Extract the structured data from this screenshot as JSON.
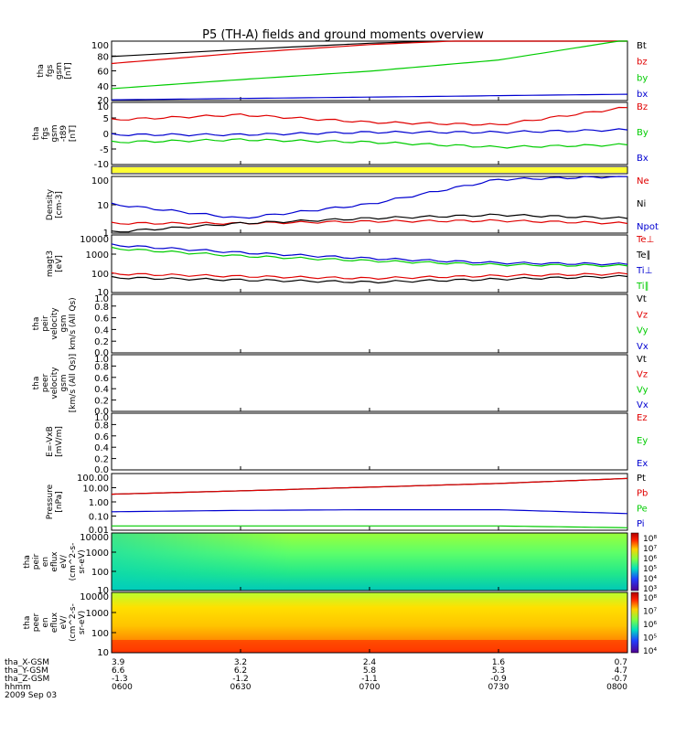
{
  "title": "P5 (TH-A) fields and ground moments overview",
  "colors": {
    "black": "#000000",
    "red": "#e00000",
    "green": "#00cc00",
    "blue": "#0000d0",
    "yellow": "#ffff33",
    "frame": "#000000"
  },
  "panels": [
    {
      "id": "fgs-gsm",
      "ylabel": [
        "tha",
        "fgs",
        "gsm",
        "[nT]"
      ],
      "yticks": [
        "100",
        "80",
        "60",
        "40",
        "20"
      ],
      "ylim": [
        20,
        105
      ],
      "legend": [
        {
          "label": "Bt",
          "color": "black"
        },
        {
          "label": "bz",
          "color": "red"
        },
        {
          "label": "by",
          "color": "green"
        },
        {
          "label": "bx",
          "color": "blue"
        }
      ]
    },
    {
      "id": "fgs-gsm-dt89",
      "ylabel": [
        "tha",
        "fgs",
        "gsm",
        "-t89",
        "[nT]"
      ],
      "yticks": [
        "10",
        "5",
        "0",
        "-5",
        "-10"
      ],
      "ylim": [
        -13,
        12
      ],
      "legend": [
        {
          "label": "Bz",
          "color": "red"
        },
        {
          "label": "By",
          "color": "green"
        },
        {
          "label": "Bx",
          "color": "blue"
        }
      ]
    },
    {
      "id": "flag-bar",
      "ylabel": [],
      "yticks": [],
      "legend": []
    },
    {
      "id": "density",
      "ylabel": [
        "Density",
        "[cm-3]"
      ],
      "yticks": [
        "100",
        "10",
        "1"
      ],
      "ylim": [
        1,
        200
      ],
      "legend": [
        {
          "label": "Ne",
          "color": "red"
        },
        {
          "label": "Ni",
          "color": "black"
        },
        {
          "label": "Npot",
          "color": "blue"
        }
      ]
    },
    {
      "id": "temperature",
      "ylabel": [
        "magt3",
        "[eV]"
      ],
      "yticks": [
        "10000",
        "1000",
        "100",
        "10"
      ],
      "ylim": [
        10,
        10000
      ],
      "legend": [
        {
          "label": "Te⊥",
          "color": "red"
        },
        {
          "label": "Te∥",
          "color": "black"
        },
        {
          "label": "Ti⊥",
          "color": "blue"
        },
        {
          "label": "Ti∥",
          "color": "green"
        }
      ]
    },
    {
      "id": "peir-velocity",
      "ylabel": [
        "tha",
        "peir",
        "velocity",
        "gsm",
        "km/s (All Qs)"
      ],
      "yticks": [
        "1.0",
        "0.8",
        "0.6",
        "0.4",
        "0.2",
        "0.0"
      ],
      "ylim": [
        0,
        1
      ],
      "legend": [
        {
          "label": "Vt",
          "color": "black"
        },
        {
          "label": "Vz",
          "color": "red"
        },
        {
          "label": "Vy",
          "color": "green"
        },
        {
          "label": "Vx",
          "color": "blue"
        }
      ]
    },
    {
      "id": "peer-velocity",
      "ylabel": [
        "tha",
        "peer",
        "velocity",
        "gsm",
        "[km/s (All Qs)]"
      ],
      "yticks": [
        "1.0",
        "0.8",
        "0.6",
        "0.4",
        "0.2",
        "0.0"
      ],
      "ylim": [
        0,
        1
      ],
      "legend": [
        {
          "label": "Vt",
          "color": "black"
        },
        {
          "label": "Vz",
          "color": "red"
        },
        {
          "label": "Vy",
          "color": "green"
        },
        {
          "label": "Vx",
          "color": "blue"
        }
      ]
    },
    {
      "id": "e-field",
      "ylabel": [
        "E=-VxB",
        "[mV/m]"
      ],
      "yticks": [
        "1.0",
        "0.8",
        "0.6",
        "0.4",
        "0.2",
        "0.0"
      ],
      "ylim": [
        0,
        1
      ],
      "legend": [
        {
          "label": "Ez",
          "color": "red"
        },
        {
          "label": "Ey",
          "color": "green"
        },
        {
          "label": "Ex",
          "color": "blue"
        }
      ]
    },
    {
      "id": "pressure",
      "ylabel": [
        "Pressure",
        "[nPa]"
      ],
      "yticks": [
        "100.00",
        "10.00",
        "1.00",
        "0.10",
        "0.01"
      ],
      "ylim": [
        0.01,
        100
      ],
      "legend": [
        {
          "label": "Pt",
          "color": "black"
        },
        {
          "label": "Pb",
          "color": "red"
        },
        {
          "label": "Pe",
          "color": "green"
        },
        {
          "label": "Pi",
          "color": "blue"
        }
      ]
    },
    {
      "id": "peir-en-eflux",
      "ylabel": [
        "tha",
        "peir",
        "en",
        "eflux",
        "eV/",
        "(cm^2-s-",
        "sr-eV)"
      ],
      "yticks": [
        "10000",
        "1000",
        "100",
        "10"
      ],
      "colorbar_ticks": [
        "10⁸",
        "10⁷",
        "10⁶",
        "10⁵",
        "10⁴",
        "10³"
      ],
      "legend": []
    },
    {
      "id": "peer-en-eflux",
      "ylabel": [
        "tha",
        "peer",
        "en",
        "eflux",
        "eV/",
        "(cm^2-s-",
        "sr-eV)"
      ],
      "yticks": [
        "10000",
        "1000",
        "100",
        "10"
      ],
      "colorbar_ticks": [
        "10⁸",
        "10⁷",
        "10⁶",
        "10⁵",
        "10⁴"
      ],
      "legend": []
    }
  ],
  "chart_data": {
    "type": "line",
    "title": "P5 (TH-A) fields and ground moments overview",
    "x": [
      "0600",
      "0630",
      "0700",
      "0730",
      "0800"
    ],
    "xlabel": "hhmm",
    "date": "2009 Sep 03",
    "series": [
      {
        "name": "Bt",
        "panel": "fgs-gsm",
        "values": [
          83,
          93,
          102,
          108,
          115
        ]
      },
      {
        "name": "bz",
        "panel": "fgs-gsm",
        "values": [
          73,
          88,
          100,
          108,
          115
        ]
      },
      {
        "name": "by",
        "panel": "fgs-gsm",
        "values": [
          37,
          50,
          62,
          78,
          107
        ]
      },
      {
        "name": "bx",
        "panel": "fgs-gsm",
        "values": [
          21,
          23,
          25,
          27,
          29
        ]
      },
      {
        "name": "Bz",
        "panel": "fgs-gsm-dt89",
        "values": [
          5,
          7,
          4,
          3,
          10
        ]
      },
      {
        "name": "By",
        "panel": "fgs-gsm-dt89",
        "values": [
          -4,
          -3,
          -4,
          -6,
          -5
        ]
      },
      {
        "name": "Bx",
        "panel": "fgs-gsm-dt89",
        "values": [
          -1,
          -1,
          0,
          0,
          1
        ]
      },
      {
        "name": "Ne",
        "panel": "density",
        "values": [
          2.5,
          2.5,
          3.0,
          3.2,
          2.5
        ]
      },
      {
        "name": "Ni",
        "panel": "density",
        "values": [
          1.1,
          2.5,
          4.0,
          5.5,
          4.0
        ]
      },
      {
        "name": "Npot",
        "panel": "density",
        "values": [
          15,
          4,
          15,
          150,
          200
        ]
      },
      {
        "name": "Te⊥",
        "panel": "temperature",
        "values": [
          95,
          70,
          55,
          75,
          95
        ]
      },
      {
        "name": "Te∥",
        "panel": "temperature",
        "values": [
          60,
          45,
          35,
          50,
          70
        ]
      },
      {
        "name": "Ti⊥",
        "panel": "temperature",
        "values": [
          3000,
          1200,
          600,
          350,
          300
        ]
      },
      {
        "name": "Ti∥",
        "panel": "temperature",
        "values": [
          2000,
          800,
          450,
          280,
          250
        ]
      },
      {
        "name": "Pt",
        "panel": "pressure",
        "values": [
          3.5,
          6,
          11,
          20,
          45
        ]
      },
      {
        "name": "Pb",
        "panel": "pressure",
        "values": [
          3.5,
          6,
          11,
          20,
          45
        ]
      },
      {
        "name": "Pe",
        "panel": "pressure",
        "values": [
          0.02,
          0.02,
          0.02,
          0.02,
          0.015
        ]
      },
      {
        "name": "Pi",
        "panel": "pressure",
        "values": [
          0.2,
          0.25,
          0.28,
          0.28,
          0.15
        ]
      }
    ],
    "ephemeris": [
      {
        "label": "tha_X-GSM",
        "values": [
          "3.9",
          "3.2",
          "2.4",
          "1.6",
          "0.7"
        ]
      },
      {
        "label": "tha_Y-GSM",
        "values": [
          "6.6",
          "6.2",
          "5.8",
          "5.3",
          "4.7"
        ]
      },
      {
        "label": "tha_Z-GSM",
        "values": [
          "-1.3",
          "-1.2",
          "-1.1",
          "-0.9",
          "-0.7"
        ]
      },
      {
        "label": "hhmm",
        "values": [
          "0600",
          "0630",
          "0700",
          "0730",
          "0800"
        ]
      }
    ]
  }
}
